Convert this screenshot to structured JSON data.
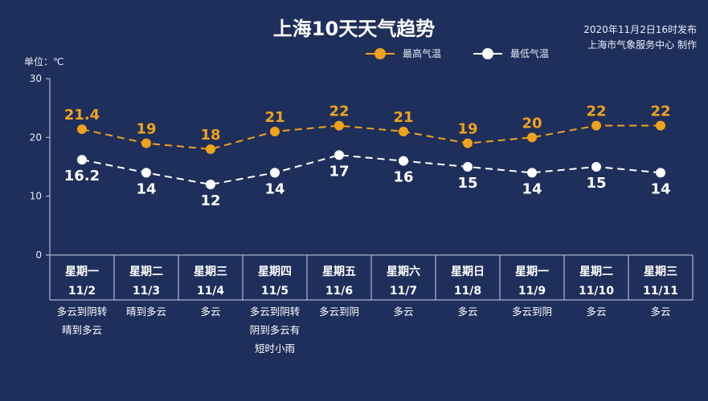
{
  "title": "上海10天天气趋势",
  "publish": {
    "line1": "2020年11月2日16时发布",
    "line2": "上海市气象服务中心 制作"
  },
  "unit_label": "单位：℃",
  "colors": {
    "background": "#1f2f5c",
    "high": "#f0a31a",
    "low": "#ffffff",
    "axis": "#c9d1e6"
  },
  "chart_data": {
    "type": "line",
    "ylim": [
      0,
      30
    ],
    "yticks": [
      0,
      10,
      20,
      30
    ],
    "grid": false,
    "legend_position": "top-right",
    "weekdays": [
      "星期一",
      "星期二",
      "星期三",
      "星期四",
      "星期五",
      "星期六",
      "星期日",
      "星期一",
      "星期二",
      "星期三"
    ],
    "dates": [
      "11/2",
      "11/3",
      "11/4",
      "11/5",
      "11/6",
      "11/7",
      "11/8",
      "11/9",
      "11/10",
      "11/11"
    ],
    "weather": [
      [
        "多云到阴转",
        "晴到多云"
      ],
      [
        "晴到多云"
      ],
      [
        "多云"
      ],
      [
        "多云到阴转",
        "阴到多云有",
        "短时小雨"
      ],
      [
        "多云到阴"
      ],
      [
        "多云"
      ],
      [
        "多云"
      ],
      [
        "多云到阴"
      ],
      [
        "多云"
      ],
      [
        "多云"
      ]
    ],
    "series": [
      {
        "name": "最高气温",
        "values": [
          21.4,
          19,
          18,
          21,
          22,
          21,
          19,
          20,
          22,
          22
        ]
      },
      {
        "name": "最低气温",
        "values": [
          16.2,
          14,
          12,
          14,
          17,
          16,
          15,
          14,
          15,
          14
        ]
      }
    ]
  }
}
